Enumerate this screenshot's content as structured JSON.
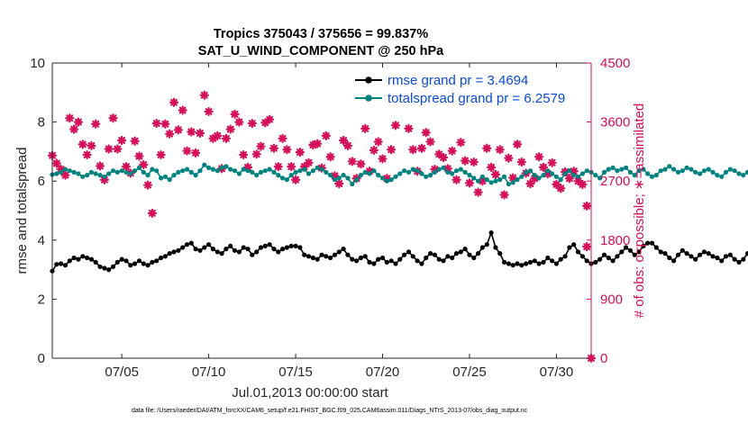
{
  "chart_data": {
    "type": "line",
    "title": "Tropics 375043 / 375656 = 99.837%",
    "subtitle": "SAT_U_WIND_COMPONENT @ 250 hPa",
    "xlabel": "Jul.01,2013 00:00:00 start",
    "ylabel": "rmse and totalspread",
    "y2label": "# of obs: o=possible; ∗=assimilated",
    "footer": "data file: /Users/raeder/DAI/ATM_forcXX/CAM6_setup/f.e21.FHIST_BGC.f09_025.CAM6assim.011/Diags_NTrS_2013-07/obs_diag_output.nc",
    "xlim": [
      1,
      32
    ],
    "ylim": [
      0,
      10
    ],
    "y2lim": [
      0,
      4500
    ],
    "xticks": [
      5,
      10,
      15,
      20,
      25,
      30
    ],
    "xtick_labels": [
      "07/05",
      "07/10",
      "07/15",
      "07/20",
      "07/25",
      "07/30"
    ],
    "yticks": [
      0,
      2,
      4,
      6,
      8,
      10
    ],
    "ytick_labels": [
      "0",
      "2",
      "4",
      "6",
      "8",
      "10"
    ],
    "y2ticks": [
      0,
      900,
      1800,
      2700,
      3600,
      4500
    ],
    "y2tick_labels": [
      "0",
      "900",
      "1800",
      "2700",
      "3600",
      "4500"
    ],
    "legend_position": "top-right",
    "colors": {
      "rmse": "#000000",
      "totalspread": "#00827f",
      "obs": "#d4105a",
      "legend_text": "#0a4bd6"
    },
    "x_step_days": 0.25,
    "x_start_day": 1,
    "series": [
      {
        "name": "rmse grand pr = 3.4694",
        "axis": "left",
        "color": "#000000",
        "values": [
          2.95,
          3.18,
          3.2,
          3.15,
          3.3,
          3.4,
          3.35,
          3.45,
          3.4,
          3.35,
          3.25,
          3.1,
          3.05,
          3.0,
          3.1,
          3.25,
          3.35,
          3.3,
          3.15,
          3.2,
          3.3,
          3.2,
          3.15,
          3.25,
          3.3,
          3.4,
          3.45,
          3.55,
          3.6,
          3.65,
          3.75,
          3.85,
          3.9,
          3.7,
          3.65,
          3.75,
          3.85,
          3.7,
          3.6,
          3.55,
          3.7,
          3.8,
          3.65,
          3.6,
          3.75,
          3.7,
          3.5,
          3.6,
          3.75,
          3.8,
          3.85,
          3.7,
          3.6,
          3.7,
          3.75,
          3.8,
          3.8,
          3.75,
          3.5,
          3.45,
          3.4,
          3.35,
          3.5,
          3.45,
          3.4,
          3.5,
          3.6,
          3.7,
          3.5,
          3.35,
          3.3,
          3.4,
          3.45,
          3.25,
          3.2,
          3.35,
          3.4,
          3.25,
          3.3,
          3.2,
          3.35,
          3.5,
          3.6,
          3.45,
          3.3,
          3.2,
          3.4,
          3.55,
          3.5,
          3.35,
          3.3,
          3.45,
          3.4,
          3.55,
          3.6,
          3.7,
          3.5,
          3.4,
          3.55,
          3.75,
          3.85,
          4.25,
          3.75,
          3.55,
          3.25,
          3.2,
          3.15,
          3.2,
          3.15,
          3.2,
          3.25,
          3.3,
          3.2,
          3.25,
          3.4,
          3.3,
          3.2,
          3.35,
          3.45,
          3.75,
          3.85,
          3.6,
          3.45,
          3.3,
          3.2,
          3.25,
          3.35,
          3.5,
          3.4,
          3.3,
          3.45,
          3.6,
          3.75,
          3.65,
          3.5,
          3.6,
          3.8,
          3.9,
          3.9,
          3.75,
          3.6,
          3.55,
          3.4,
          3.3,
          3.5,
          3.65,
          3.55,
          3.45,
          3.35,
          3.5,
          3.6,
          3.55,
          3.45,
          3.4,
          3.3,
          3.45,
          3.5,
          3.35,
          3.25,
          3.35,
          3.55,
          3.6,
          3.45,
          3.3,
          3.25,
          3.4,
          3.5,
          3.35,
          3.3,
          3.4,
          3.5,
          3.45,
          3.55,
          3.65,
          3.55,
          3.4,
          3.45,
          3.6,
          3.75,
          3.8,
          3.75,
          3.8,
          3.8,
          3.75,
          3.8,
          3.85,
          3.75,
          3.8,
          3.75,
          3.7,
          3.6,
          3.55,
          3.4,
          3.3,
          3.5,
          3.6,
          3.45,
          3.35,
          3.5,
          3.6,
          3.55,
          3.4,
          3.45,
          3.6,
          3.7,
          3.75,
          3.75
        ]
      },
      {
        "name": "totalspread grand pr = 6.2579",
        "axis": "left",
        "color": "#00827f",
        "values": [
          6.22,
          6.25,
          6.3,
          6.4,
          6.35,
          6.3,
          6.25,
          6.15,
          6.2,
          6.3,
          6.25,
          6.2,
          6.15,
          6.25,
          6.35,
          6.3,
          6.35,
          6.3,
          6.25,
          6.35,
          6.45,
          6.3,
          6.2,
          6.4,
          6.35,
          6.1,
          6.15,
          6.05,
          6.2,
          6.3,
          6.35,
          6.4,
          6.3,
          6.2,
          6.35,
          6.55,
          6.45,
          6.4,
          6.35,
          6.45,
          6.5,
          6.4,
          6.35,
          6.25,
          6.4,
          6.35,
          6.3,
          6.2,
          6.3,
          6.35,
          6.4,
          6.3,
          6.2,
          6.1,
          6.05,
          6.2,
          6.3,
          6.35,
          6.4,
          6.25,
          6.35,
          6.45,
          6.4,
          6.3,
          6.2,
          6.05,
          6.1,
          6.2,
          6.1,
          5.9,
          6.05,
          6.2,
          6.3,
          6.25,
          6.35,
          6.2,
          6.1,
          6.0,
          6.05,
          6.15,
          6.25,
          6.35,
          6.3,
          6.4,
          6.35,
          6.25,
          6.15,
          6.2,
          6.3,
          6.4,
          6.45,
          6.3,
          6.25,
          6.35,
          6.4,
          6.3,
          6.2,
          6.1,
          6.0,
          6.15,
          6.05,
          5.95,
          6.0,
          6.05,
          6.15,
          5.9,
          5.95,
          6.05,
          6.15,
          6.3,
          6.35,
          6.2,
          6.1,
          6.2,
          6.35,
          6.25,
          6.15,
          6.05,
          6.25,
          6.35,
          6.2,
          6.15,
          6.25,
          6.35,
          6.3,
          6.2,
          6.1,
          6.3,
          6.4,
          6.45,
          6.35,
          6.4,
          6.45,
          6.3,
          6.2,
          6.35,
          6.4,
          6.25,
          6.15,
          6.2,
          6.35,
          6.4,
          6.5,
          6.4,
          6.3,
          6.35,
          6.45,
          6.4,
          6.3,
          6.25,
          6.35,
          6.4,
          6.3,
          6.2,
          6.15,
          6.3,
          6.4,
          6.35,
          6.25,
          6.2,
          6.3,
          6.35,
          6.25,
          6.15,
          6.2,
          6.35,
          6.4,
          6.3,
          6.2,
          6.1,
          6.2,
          6.3,
          6.35,
          6.4,
          6.3,
          6.2,
          6.35,
          6.5,
          6.45,
          6.4,
          6.35,
          6.45,
          6.5,
          6.45,
          6.35,
          6.3,
          6.4,
          6.35,
          6.25,
          6.2,
          6.3,
          6.4,
          6.35,
          6.3,
          6.2,
          6.25,
          6.35,
          6.4,
          6.3,
          6.25,
          6.35,
          6.45,
          6.4,
          6.3,
          6.25,
          6.35,
          6.45,
          6.5,
          6.55,
          6.45,
          6.5
        ]
      }
    ],
    "obs_series": {
      "name": "# of obs assimilated",
      "axis": "right",
      "marker": "asterisk",
      "color": "#d4105a",
      "points": [
        [
          1.0,
          3090
        ],
        [
          1.25,
          2970
        ],
        [
          1.5,
          2880
        ],
        [
          1.75,
          2790
        ],
        [
          2.0,
          3660
        ],
        [
          2.25,
          3490
        ],
        [
          2.5,
          3600
        ],
        [
          2.75,
          3260
        ],
        [
          3.0,
          3100
        ],
        [
          3.25,
          3240
        ],
        [
          3.5,
          3570
        ],
        [
          3.75,
          2930
        ],
        [
          4.0,
          2720
        ],
        [
          4.25,
          3190
        ],
        [
          4.5,
          3660
        ],
        [
          4.75,
          3190
        ],
        [
          5.0,
          3320
        ],
        [
          5.25,
          2920
        ],
        [
          5.5,
          2820
        ],
        [
          5.75,
          3310
        ],
        [
          6.0,
          3080
        ],
        [
          6.25,
          2950
        ],
        [
          6.5,
          2640
        ],
        [
          6.75,
          2210
        ],
        [
          7.0,
          3580
        ],
        [
          7.25,
          3100
        ],
        [
          7.5,
          3570
        ],
        [
          7.75,
          3420
        ],
        [
          8.0,
          3900
        ],
        [
          8.25,
          3480
        ],
        [
          8.5,
          3780
        ],
        [
          8.75,
          3160
        ],
        [
          9.0,
          3450
        ],
        [
          9.25,
          3130
        ],
        [
          9.5,
          3430
        ],
        [
          9.75,
          4010
        ],
        [
          10.0,
          3760
        ],
        [
          10.25,
          3350
        ],
        [
          10.5,
          3390
        ],
        [
          10.75,
          2890
        ],
        [
          11.0,
          3350
        ],
        [
          11.25,
          3490
        ],
        [
          11.5,
          3720
        ],
        [
          11.75,
          3600
        ],
        [
          12.0,
          3100
        ],
        [
          12.25,
          2910
        ],
        [
          12.5,
          3580
        ],
        [
          12.75,
          3110
        ],
        [
          13.0,
          3230
        ],
        [
          13.25,
          3590
        ],
        [
          13.5,
          3640
        ],
        [
          13.75,
          3200
        ],
        [
          14.0,
          2920
        ],
        [
          14.25,
          3350
        ],
        [
          14.5,
          3180
        ],
        [
          14.75,
          2920
        ],
        [
          15.0,
          2720
        ],
        [
          15.25,
          3140
        ],
        [
          15.5,
          2920
        ],
        [
          15.75,
          2980
        ],
        [
          16.0,
          3250
        ],
        [
          16.25,
          3270
        ],
        [
          16.5,
          2900
        ],
        [
          16.75,
          3390
        ],
        [
          17.0,
          3070
        ],
        [
          17.25,
          2780
        ],
        [
          17.5,
          2660
        ],
        [
          17.75,
          3320
        ],
        [
          18.0,
          3240
        ],
        [
          18.25,
          3000
        ],
        [
          18.5,
          2740
        ],
        [
          18.75,
          2960
        ],
        [
          19.0,
          3500
        ],
        [
          19.25,
          2850
        ],
        [
          19.5,
          3170
        ],
        [
          19.75,
          3300
        ],
        [
          20.0,
          3040
        ],
        [
          20.25,
          2740
        ],
        [
          20.5,
          3180
        ],
        [
          20.75,
          3550
        ],
        [
          21.0,
          3920
        ],
        [
          21.25,
          3900
        ],
        [
          21.5,
          3500
        ],
        [
          21.75,
          3180
        ],
        [
          22.0,
          2850
        ],
        [
          22.25,
          3200
        ],
        [
          22.5,
          3440
        ],
        [
          22.75,
          3300
        ],
        [
          23.0,
          2880
        ],
        [
          23.25,
          3110
        ],
        [
          23.5,
          3060
        ],
        [
          23.75,
          2890
        ],
        [
          24.0,
          3160
        ],
        [
          24.25,
          2720
        ],
        [
          24.5,
          3290
        ],
        [
          24.75,
          3010
        ],
        [
          25.0,
          2670
        ],
        [
          25.25,
          2990
        ],
        [
          25.5,
          2530
        ],
        [
          25.75,
          2700
        ],
        [
          26.0,
          3200
        ],
        [
          26.25,
          2910
        ],
        [
          26.5,
          2800
        ],
        [
          26.75,
          3180
        ],
        [
          27.0,
          2490
        ],
        [
          27.25,
          3050
        ],
        [
          27.5,
          2750
        ],
        [
          27.75,
          3260
        ],
        [
          28.0,
          2990
        ],
        [
          28.25,
          2820
        ],
        [
          28.5,
          2660
        ],
        [
          28.75,
          2740
        ],
        [
          29.0,
          3070
        ],
        [
          29.25,
          2910
        ],
        [
          29.5,
          2810
        ],
        [
          29.75,
          2980
        ],
        [
          30.0,
          2650
        ],
        [
          30.25,
          2590
        ],
        [
          30.5,
          2840
        ],
        [
          30.75,
          2740
        ],
        [
          31.0,
          2850
        ],
        [
          31.25,
          2700
        ],
        [
          31.5,
          2650
        ],
        [
          31.75,
          2320
        ],
        [
          31.75,
          1700
        ]
      ],
      "zero_marker_x": 32
    }
  }
}
